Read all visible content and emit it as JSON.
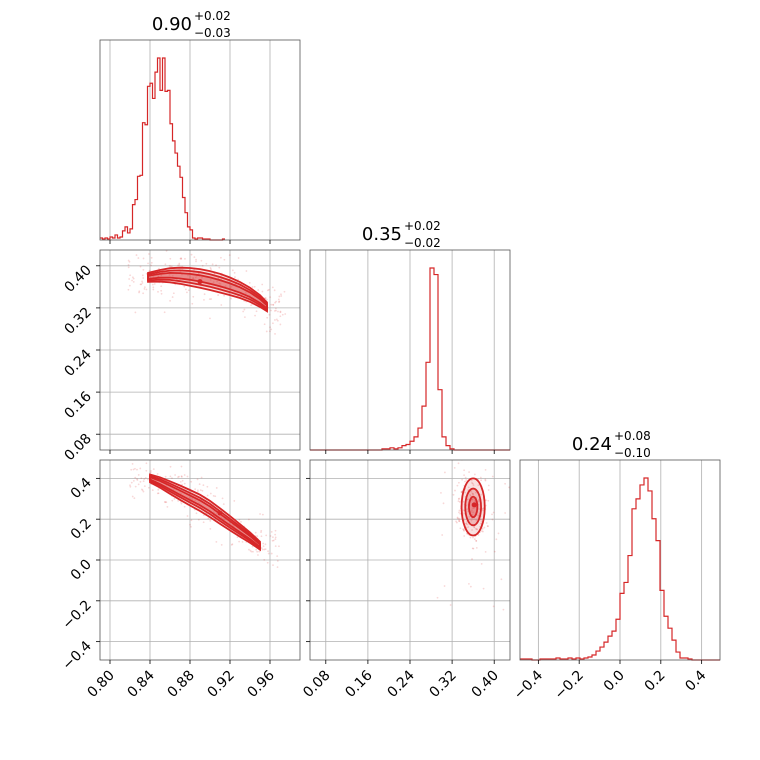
{
  "chart_data": {
    "type": "corner",
    "color": "#d62728",
    "parameters": [
      {
        "title": {
          "value": "0.90",
          "plus": "+0.02",
          "minus": "−0.03"
        },
        "range": [
          0.79,
          0.99
        ],
        "ticks": [
          0.8,
          0.84,
          0.88,
          0.92,
          0.96
        ],
        "tick_labels": [
          "0.80",
          "0.84",
          "0.88",
          "0.92",
          "0.96"
        ],
        "histogram": {
          "bin_edges_start": 0.79,
          "bin_width": 0.0025,
          "counts": [
            2,
            1,
            2,
            1,
            3,
            2,
            5,
            2,
            3,
            9,
            13,
            7,
            11,
            35,
            40,
            63,
            64,
            116,
            114,
            152,
            155,
            140,
            166,
            180,
            148,
            180,
            147,
            148,
            115,
            98,
            86,
            73,
            62,
            42,
            27,
            13,
            10,
            2,
            1,
            2,
            2,
            1,
            1,
            1,
            0,
            0,
            0,
            0,
            0,
            1
          ]
        },
        "grid": true
      },
      {
        "title": {
          "value": "0.35",
          "plus": "+0.02",
          "minus": "−0.02"
        },
        "range": [
          0.05,
          0.43
        ],
        "ticks": [
          0.08,
          0.16,
          0.24,
          0.32,
          0.4
        ],
        "tick_labels": [
          "0.08",
          "0.16",
          "0.24",
          "0.32",
          "0.40"
        ],
        "histogram": {
          "bin_edges_start": 0.05,
          "bin_width": 0.0076,
          "counts": [
            0,
            0,
            0,
            0,
            0,
            0,
            0,
            0,
            0,
            0,
            0,
            0,
            0,
            0,
            0,
            0,
            0,
            0,
            1,
            1,
            2,
            1,
            2,
            4,
            5,
            8,
            12,
            20,
            40,
            80,
            166,
            160,
            55,
            12,
            4,
            1,
            0,
            0,
            0,
            0,
            0,
            0,
            0,
            0,
            0,
            0,
            0,
            0,
            0,
            0
          ]
        },
        "grid": true
      },
      {
        "title": {
          "value": "0.24",
          "plus": "+0.08",
          "minus": "−0.10"
        },
        "range": [
          -0.49,
          0.49
        ],
        "ticks": [
          -0.4,
          -0.2,
          0.0,
          0.2,
          0.4
        ],
        "tick_labels": [
          "−0.4",
          "−0.2",
          "0.0",
          "0.2",
          "0.4"
        ],
        "histogram": {
          "bin_edges_start": -0.49,
          "bin_width": 0.0196,
          "counts": [
            1,
            1,
            1,
            0,
            0,
            1,
            1,
            1,
            1,
            2,
            1,
            1,
            2,
            1,
            2,
            1,
            2,
            3,
            5,
            9,
            13,
            18,
            24,
            29,
            41,
            67,
            78,
            105,
            152,
            162,
            176,
            183,
            170,
            142,
            120,
            70,
            44,
            32,
            20,
            8,
            2,
            2,
            1,
            0,
            0,
            0,
            0,
            0,
            0,
            0
          ]
        },
        "grid": true
      }
    ],
    "joint": [
      {
        "x_param": 0,
        "y_param": 1,
        "ridge_x": [
          0.838,
          0.85,
          0.86,
          0.87,
          0.88,
          0.89,
          0.9,
          0.91,
          0.92,
          0.93,
          0.94,
          0.95,
          0.957
        ],
        "ridge_y": [
          0.378,
          0.381,
          0.382,
          0.381,
          0.379,
          0.376,
          0.372,
          0.367,
          0.361,
          0.354,
          0.345,
          0.333,
          0.322
        ],
        "contour_halfwidths_y": [
          0.006,
          0.012,
          0.018
        ],
        "peak": [
          0.89,
          0.37
        ]
      },
      {
        "x_param": 0,
        "y_param": 2,
        "ridge_x": [
          0.84,
          0.85,
          0.86,
          0.87,
          0.88,
          0.89,
          0.9,
          0.91,
          0.92,
          0.93,
          0.94,
          0.95
        ],
        "ridge_y": [
          0.4,
          0.38,
          0.355,
          0.33,
          0.305,
          0.28,
          0.25,
          0.215,
          0.18,
          0.145,
          0.11,
          0.07
        ],
        "contour_halfwidths_y": [
          0.012,
          0.025,
          0.04
        ],
        "peak": [
          0.91,
          0.23
        ]
      },
      {
        "x_param": 1,
        "y_param": 2,
        "center": [
          0.36,
          0.26
        ],
        "radii": [
          [
            0.008,
            0.05
          ],
          [
            0.015,
            0.09
          ],
          [
            0.022,
            0.14
          ]
        ],
        "peak": [
          0.362,
          0.27
        ]
      }
    ]
  }
}
